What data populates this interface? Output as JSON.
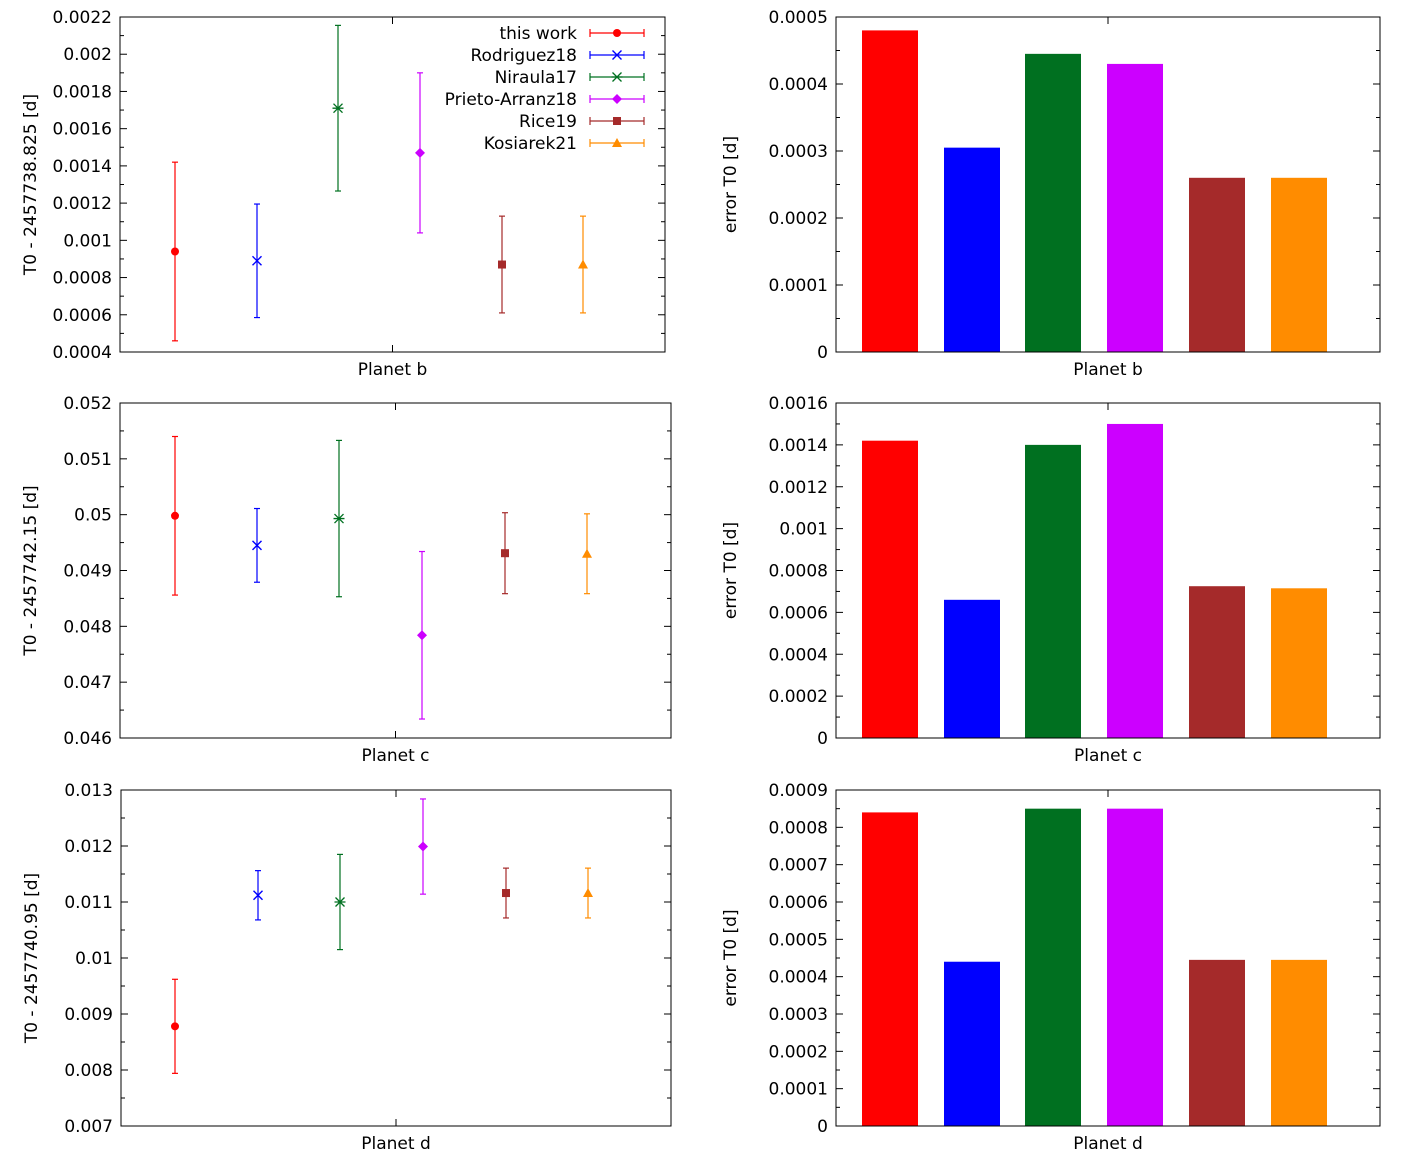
{
  "series_meta": [
    {
      "name": "this work",
      "color": "#ff0000",
      "marker": "circle"
    },
    {
      "name": "Rodriguez18",
      "color": "#0000ff",
      "marker": "cross-x"
    },
    {
      "name": "Niraula17",
      "color": "#007020",
      "marker": "star"
    },
    {
      "name": "Prieto-Arranz18",
      "color": "#cc00ff",
      "marker": "diamond"
    },
    {
      "name": "Rice19",
      "color": "#a52a2a",
      "marker": "square"
    },
    {
      "name": "Kosiarek21",
      "color": "#ff8c00",
      "marker": "triangle"
    }
  ],
  "chart_data": [
    {
      "type": "scatter-errorbar",
      "xlabel": "Planet b",
      "ylabel": "T0 - 2457738.825 [d]",
      "ylim": [
        0.0004,
        0.0022
      ],
      "yticks": [
        "0.0004",
        "0.0006",
        "0.0008",
        "0.001",
        "0.0012",
        "0.0014",
        "0.0016",
        "0.0018",
        "0.002",
        "0.0022"
      ],
      "legend": true,
      "legend_position": "top-right",
      "values": [
        0.00094,
        0.00089,
        0.00171,
        0.00147,
        0.00087,
        0.00087
      ],
      "errors": [
        0.00048,
        0.000305,
        0.000445,
        0.00043,
        0.00026,
        0.00026
      ]
    },
    {
      "type": "bar",
      "xlabel": "Planet b",
      "ylabel": "error T0 [d]",
      "ylim": [
        0,
        0.0005
      ],
      "yticks": [
        "0",
        "0.0001",
        "0.0002",
        "0.0003",
        "0.0004",
        "0.0005"
      ],
      "values": [
        0.00048,
        0.000305,
        0.000445,
        0.00043,
        0.00026,
        0.00026
      ]
    },
    {
      "type": "scatter-errorbar",
      "xlabel": "Planet c",
      "ylabel": "T0 - 2457742.15 [d]",
      "ylim": [
        0.046,
        0.052
      ],
      "yticks": [
        "0.046",
        "0.047",
        "0.048",
        "0.049",
        "0.05",
        "0.051",
        "0.052"
      ],
      "legend": false,
      "values": [
        0.04998,
        0.04945,
        0.04993,
        0.04784,
        0.04931,
        0.0493
      ],
      "errors": [
        0.00142,
        0.00066,
        0.0014,
        0.0015,
        0.000725,
        0.000715
      ]
    },
    {
      "type": "bar",
      "xlabel": "Planet c",
      "ylabel": "error T0 [d]",
      "ylim": [
        0,
        0.0016
      ],
      "yticks": [
        "0",
        "0.0002",
        "0.0004",
        "0.0006",
        "0.0008",
        "0.001",
        "0.0012",
        "0.0014",
        "0.0016"
      ],
      "values": [
        0.00142,
        0.00066,
        0.0014,
        0.0015,
        0.000725,
        0.000715
      ]
    },
    {
      "type": "scatter-errorbar",
      "xlabel": "Planet d",
      "ylabel": "T0 - 2457740.95 [d]",
      "ylim": [
        0.007,
        0.013
      ],
      "yticks": [
        "0.007",
        "0.008",
        "0.009",
        "0.01",
        "0.011",
        "0.012",
        "0.013"
      ],
      "legend": false,
      "values": [
        0.00878,
        0.01112,
        0.011,
        0.01199,
        0.01116,
        0.01116
      ],
      "errors": [
        0.00084,
        0.00044,
        0.00085,
        0.00085,
        0.000445,
        0.000445
      ]
    },
    {
      "type": "bar",
      "xlabel": "Planet d",
      "ylabel": "error T0 [d]",
      "ylim": [
        0,
        0.0009
      ],
      "yticks": [
        "0",
        "0.0001",
        "0.0002",
        "0.0003",
        "0.0004",
        "0.0005",
        "0.0006",
        "0.0007",
        "0.0008",
        "0.0009"
      ],
      "values": [
        0.00084,
        0.00044,
        0.00085,
        0.00085,
        0.000445,
        0.000445
      ]
    }
  ]
}
